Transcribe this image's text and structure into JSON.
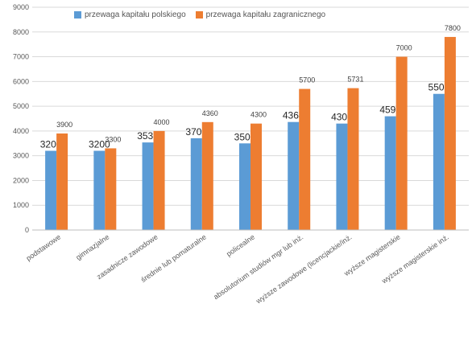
{
  "chart_data": {
    "type": "bar",
    "ylim": [
      0,
      9000
    ],
    "yticks": [
      0,
      1000,
      2000,
      3000,
      4000,
      5000,
      6000,
      7000,
      8000,
      9000
    ],
    "grid": true,
    "legend_position": "top",
    "categories": [
      "podstawowe",
      "gimnazjalne",
      "zasadnicze zawodowe",
      "średnie lub pomaturalne",
      "policealne",
      "absolutorium studiów mgr lub inż.",
      "wyższe zawodowe (licencjackie/inż.",
      "wyższe magisterskie",
      "wyższe magisterskie inż."
    ],
    "series": [
      {
        "name": "przewaga kapitału polskiego",
        "color": "#5b9bd5",
        "values": [
          3200,
          3200,
          3538,
          3708,
          3500,
          4364,
          4300,
          4595,
          5500
        ],
        "labels": [
          "3200",
          "3200",
          "3538",
          "3708",
          "3500",
          "4364",
          "4300",
          "4595",
          "5500"
        ]
      },
      {
        "name": "przewaga kapitału zagranicznego",
        "color": "#ed7d31",
        "values": [
          3900,
          3300,
          4000,
          4360,
          4300,
          5700,
          5731,
          7000,
          7800
        ],
        "labels": [
          "3900",
          "3300",
          "4000",
          "4360",
          "4300",
          "5700",
          "5731",
          "7000",
          "7800"
        ]
      }
    ]
  }
}
